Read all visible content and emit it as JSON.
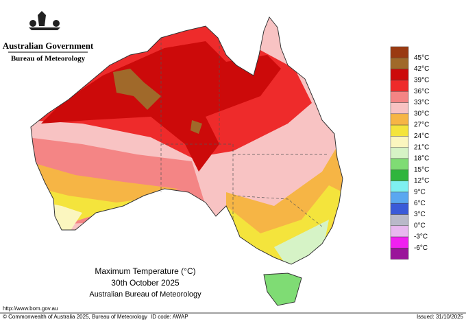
{
  "header": {
    "agency": "Australian Government",
    "bureau": "Bureau of Meteorology"
  },
  "title": {
    "line1": "Maximum Temperature (°C)",
    "line2": "30th October 2025",
    "line3": "Australian Bureau of Meteorology"
  },
  "legend": {
    "labels": [
      "45°C",
      "42°C",
      "39°C",
      "36°C",
      "33°C",
      "30°C",
      "27°C",
      "24°C",
      "21°C",
      "18°C",
      "15°C",
      "12°C",
      "9°C",
      "6°C",
      "3°C",
      "0°C",
      "-3°C",
      "-6°C"
    ],
    "colors": [
      "#9a3a12",
      "#a0692a",
      "#cc0a0a",
      "#ee2b2b",
      "#f48585",
      "#f8c3c3",
      "#f6b545",
      "#f4e43c",
      "#fbf6bf",
      "#d6f3c6",
      "#7fdc74",
      "#2fb53d",
      "#7ef0f0",
      "#5aa7f0",
      "#3a5ad8",
      "#b9b9c9",
      "#e8b8ef",
      "#f020f0",
      "#9a149a"
    ]
  },
  "footer": {
    "url": "http://www.bom.gov.au",
    "copyright": "© Commonwealth of Australia 2025, Bureau of Meteorology",
    "id": "ID code: AWAP",
    "issued": "Issued: 31/10/2025"
  }
}
